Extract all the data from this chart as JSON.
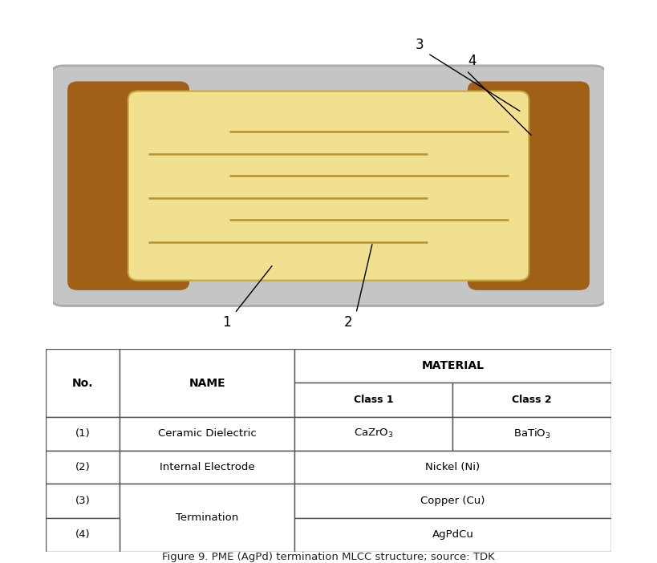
{
  "bg_color": "#ffffff",
  "diagram": {
    "outer_cap_color": "#c5c5c5",
    "outer_cap_edge": "#aaaaaa",
    "inner_cap_color": "#a06018",
    "inner_cap_edge": "#7a4a10",
    "ceramic_color": "#f0e090",
    "ceramic_edge": "#c8a840",
    "electrode_color": "#b89030",
    "electrode_lw": 1.8
  },
  "table": {
    "col_bounds": [
      0.0,
      0.13,
      0.44,
      0.72,
      1.0
    ],
    "row_bounds": [
      0.0,
      0.155,
      0.315,
      0.475,
      0.645,
      0.805,
      1.0
    ],
    "ec": "#555555",
    "text_color": "#000000"
  },
  "title": "Figure 9. PME (AgPd) termination MLCC structure; source: TDK"
}
